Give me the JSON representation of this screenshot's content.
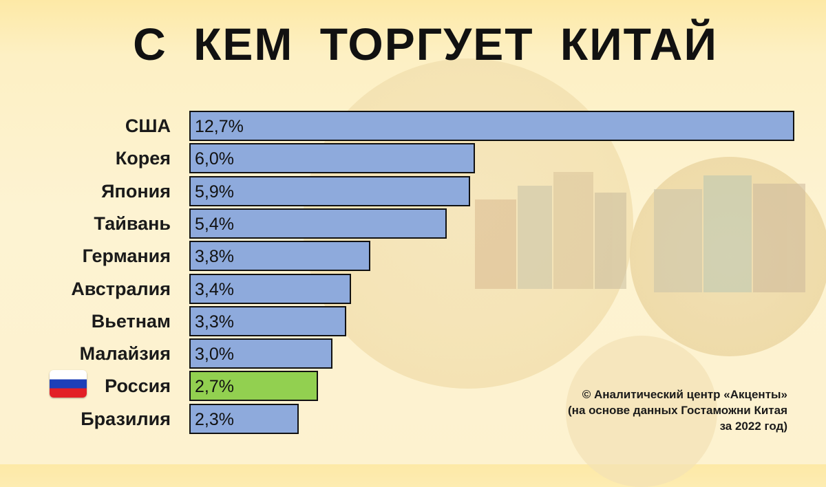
{
  "title": "С КЕМ ТОРГУЕТ КИТАЙ",
  "chart_data": {
    "type": "bar",
    "orientation": "horizontal",
    "categories": [
      "США",
      "Корея",
      "Япония",
      "Тайвань",
      "Германия",
      "Австралия",
      "Вьетнам",
      "Малайзия",
      "Россия",
      "Бразилия"
    ],
    "values": [
      12.7,
      6.0,
      5.9,
      5.4,
      3.8,
      3.4,
      3.3,
      3.0,
      2.7,
      2.3
    ],
    "value_labels": [
      "12,7%",
      "6,0%",
      "5,9%",
      "5,4%",
      "3,8%",
      "3,4%",
      "3,3%",
      "3,0%",
      "2,7%",
      "2,3%"
    ],
    "highlight": "Россия",
    "bar_color": "#8eaadc",
    "highlight_color": "#92d050",
    "flag": "russia-flag-icon"
  },
  "source": {
    "line1": "© Аналитический центр «Акценты»",
    "line2": "(на основе данных Гостаможни Китая",
    "line3": "за 2022 год)"
  }
}
